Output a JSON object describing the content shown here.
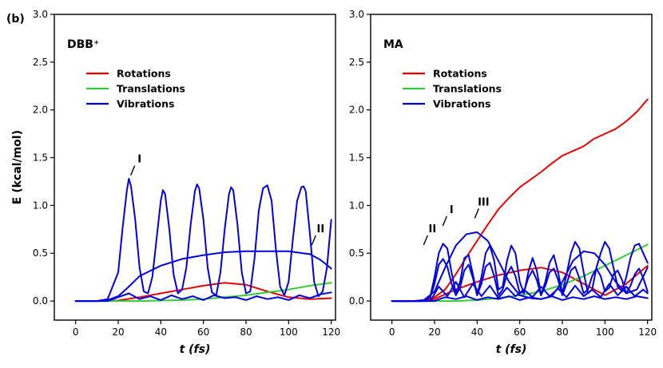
{
  "figure_label": "(b)",
  "colors": {
    "rotations": "#e60000",
    "translations": "#33cc33",
    "vibrations": "#0000dd"
  },
  "chart_data": [
    {
      "type": "line",
      "title": "DBB⁺",
      "xlabel": "t (fs)",
      "ylabel": "E (kcal/mol)",
      "xlim": [
        -10,
        122
      ],
      "ylim": [
        -0.2,
        3.0
      ],
      "xticks": [
        0,
        20,
        40,
        60,
        80,
        100,
        120
      ],
      "yticks": [
        0.0,
        0.5,
        1.0,
        1.5,
        2.0,
        2.5,
        3.0
      ],
      "ytick_labels": [
        "0.0",
        "0.5",
        "1.0",
        "1.5",
        "2.0",
        "2.5",
        "3.0"
      ],
      "legend": {
        "position": "upper-left",
        "entries": [
          "Rotations",
          "Translations",
          "Vibrations"
        ]
      },
      "annotations": [
        {
          "text": "I",
          "x": 30,
          "y": 1.45
        },
        {
          "text": "II",
          "x": 115,
          "y": 0.72
        }
      ],
      "series": [
        {
          "name": "Rotations",
          "group": "rotations",
          "x": [
            0,
            10,
            20,
            30,
            40,
            50,
            60,
            70,
            80,
            90,
            100,
            110,
            120
          ],
          "values": [
            0,
            0,
            0.005,
            0.04,
            0.08,
            0.12,
            0.16,
            0.19,
            0.17,
            0.1,
            0.04,
            0.02,
            0.03
          ]
        },
        {
          "name": "Translations",
          "group": "translations",
          "x": [
            0,
            10,
            20,
            30,
            40,
            50,
            60,
            70,
            80,
            90,
            100,
            110,
            120
          ],
          "values": [
            0,
            0,
            0,
            0,
            0.005,
            0.01,
            0.02,
            0.04,
            0.06,
            0.09,
            0.12,
            0.16,
            0.19
          ]
        },
        {
          "name": "Vibrations",
          "group": "vibrations",
          "x": [
            0,
            10,
            15,
            20,
            22,
            24,
            25,
            26,
            28,
            30,
            32,
            34,
            36,
            38,
            40,
            41,
            42,
            44,
            46,
            48,
            50,
            52,
            54,
            56,
            57,
            58,
            60,
            62,
            64,
            66,
            68,
            70,
            72,
            73,
            74,
            76,
            78,
            80,
            82,
            84,
            86,
            88,
            90,
            92,
            94,
            96,
            98,
            100,
            102,
            104,
            106,
            107,
            108,
            110,
            112,
            114,
            116,
            118,
            120
          ],
          "values": [
            0,
            0,
            0.02,
            0.3,
            0.75,
            1.15,
            1.28,
            1.2,
            0.85,
            0.35,
            0.1,
            0.08,
            0.25,
            0.65,
            1.05,
            1.16,
            1.12,
            0.75,
            0.28,
            0.08,
            0.12,
            0.35,
            0.8,
            1.15,
            1.22,
            1.18,
            0.85,
            0.35,
            0.09,
            0.06,
            0.3,
            0.75,
            1.12,
            1.19,
            1.16,
            0.8,
            0.3,
            0.08,
            0.1,
            0.45,
            0.95,
            1.18,
            1.21,
            1.05,
            0.55,
            0.15,
            0.06,
            0.2,
            0.65,
            1.05,
            1.19,
            1.2,
            1.15,
            0.7,
            0.2,
            0.05,
            0.1,
            0.35,
            0.85
          ]
        },
        {
          "name": "Vibrations (II)",
          "group": "vibrations",
          "x": [
            0,
            10,
            15,
            20,
            25,
            30,
            40,
            50,
            60,
            70,
            80,
            90,
            100,
            110,
            115,
            120
          ],
          "values": [
            0,
            0,
            0.01,
            0.05,
            0.15,
            0.26,
            0.37,
            0.44,
            0.48,
            0.51,
            0.52,
            0.52,
            0.52,
            0.49,
            0.43,
            0.34
          ]
        },
        {
          "name": "Vibrations (low)",
          "group": "vibrations",
          "x": [
            0,
            15,
            20,
            25,
            30,
            35,
            40,
            45,
            50,
            55,
            60,
            65,
            70,
            75,
            80,
            85,
            90,
            95,
            100,
            105,
            110,
            115,
            120
          ],
          "values": [
            0,
            0,
            0.04,
            0.08,
            0.02,
            0.05,
            0.01,
            0.06,
            0.02,
            0.05,
            0.01,
            0.06,
            0.03,
            0.04,
            0.01,
            0.05,
            0.02,
            0.04,
            0.01,
            0.06,
            0.03,
            0.07,
            0.09
          ]
        }
      ]
    },
    {
      "type": "line",
      "title": "MA",
      "xlabel": "t (fs)",
      "ylabel": "",
      "xlim": [
        -10,
        122
      ],
      "ylim": [
        -0.2,
        3.0
      ],
      "xticks": [
        0,
        20,
        40,
        60,
        80,
        100,
        120
      ],
      "yticks": [
        0.0,
        0.5,
        1.0,
        1.5,
        2.0,
        2.5,
        3.0
      ],
      "ytick_labels": [
        "0.0",
        "0.5",
        "1.0",
        "1.5",
        "2.0",
        "2.5",
        "3.0"
      ],
      "legend": {
        "position": "upper-left",
        "entries": [
          "Rotations",
          "Translations",
          "Vibrations"
        ]
      },
      "annotations": [
        {
          "text": "II",
          "x": 19,
          "y": 0.72
        },
        {
          "text": "I",
          "x": 28,
          "y": 0.92
        },
        {
          "text": "III",
          "x": 43,
          "y": 1.0
        }
      ],
      "series": [
        {
          "name": "Rotations",
          "group": "rotations",
          "x": [
            0,
            10,
            15,
            20,
            25,
            30,
            35,
            40,
            45,
            50,
            55,
            60,
            65,
            70,
            75,
            80,
            85,
            90,
            95,
            100,
            105,
            110,
            115,
            120
          ],
          "values": [
            0,
            0,
            0.005,
            0.04,
            0.12,
            0.28,
            0.46,
            0.63,
            0.8,
            0.96,
            1.08,
            1.19,
            1.27,
            1.35,
            1.44,
            1.52,
            1.57,
            1.62,
            1.7,
            1.75,
            1.8,
            1.88,
            1.98,
            2.11
          ]
        },
        {
          "name": "Rotations (2)",
          "group": "rotations",
          "x": [
            0,
            15,
            20,
            30,
            40,
            50,
            60,
            70,
            80,
            90,
            100,
            110,
            120
          ],
          "values": [
            0,
            0,
            0.02,
            0.12,
            0.2,
            0.27,
            0.32,
            0.35,
            0.3,
            0.18,
            0.06,
            0.18,
            0.37
          ]
        },
        {
          "name": "Translations",
          "group": "translations",
          "x": [
            0,
            10,
            20,
            30,
            40,
            50,
            60,
            70,
            80,
            90,
            100,
            110,
            120
          ],
          "values": [
            0,
            0,
            0,
            0,
            0.01,
            0.03,
            0.06,
            0.1,
            0.17,
            0.26,
            0.37,
            0.48,
            0.59
          ]
        },
        {
          "name": "Vibrations (III)",
          "group": "vibrations",
          "x": [
            0,
            10,
            15,
            20,
            25,
            30,
            35,
            40,
            45,
            50,
            55,
            60,
            65,
            70,
            75,
            80,
            85,
            90,
            95,
            100,
            105,
            110,
            115,
            120
          ],
          "values": [
            0,
            0,
            0.01,
            0.1,
            0.35,
            0.58,
            0.7,
            0.72,
            0.63,
            0.42,
            0.2,
            0.06,
            0.03,
            0.02,
            0.05,
            0.2,
            0.42,
            0.52,
            0.5,
            0.38,
            0.2,
            0.08,
            0.12,
            0.35
          ]
        },
        {
          "name": "Vibrations (I)",
          "group": "vibrations",
          "x": [
            0,
            15,
            18,
            20,
            22,
            24,
            26,
            28,
            30,
            32,
            34,
            36,
            38,
            40,
            42,
            44,
            46,
            48,
            50,
            52,
            54,
            56,
            58,
            60,
            62,
            64,
            66,
            68,
            70,
            72,
            74,
            76,
            78,
            80,
            82,
            84,
            86,
            88,
            90,
            92,
            94,
            96,
            98,
            100,
            102,
            104,
            106,
            108,
            110,
            112,
            114,
            116,
            118,
            120
          ],
          "values": [
            0,
            0,
            0.05,
            0.25,
            0.5,
            0.6,
            0.55,
            0.3,
            0.08,
            0.2,
            0.45,
            0.48,
            0.28,
            0.06,
            0.25,
            0.5,
            0.58,
            0.42,
            0.12,
            0.15,
            0.42,
            0.58,
            0.5,
            0.2,
            0.08,
            0.3,
            0.45,
            0.32,
            0.06,
            0.2,
            0.4,
            0.48,
            0.3,
            0.08,
            0.28,
            0.5,
            0.62,
            0.55,
            0.3,
            0.08,
            0.12,
            0.35,
            0.5,
            0.62,
            0.55,
            0.35,
            0.15,
            0.1,
            0.25,
            0.45,
            0.58,
            0.6,
            0.5,
            0.4
          ]
        },
        {
          "name": "Vibrations (II)",
          "group": "vibrations",
          "x": [
            0,
            15,
            18,
            20,
            22,
            24,
            26,
            28,
            30,
            32,
            34,
            36,
            38,
            40,
            42,
            44,
            46,
            48,
            50,
            52,
            54,
            56,
            58,
            60,
            62,
            64,
            66,
            68,
            70,
            72,
            74,
            76,
            78,
            80,
            82,
            84,
            86,
            88,
            90,
            92,
            94,
            96,
            98,
            100,
            102,
            104,
            106,
            108,
            110,
            112,
            114,
            116,
            118,
            120
          ],
          "values": [
            0,
            0,
            0.04,
            0.18,
            0.38,
            0.44,
            0.36,
            0.18,
            0.06,
            0.14,
            0.32,
            0.38,
            0.24,
            0.06,
            0.18,
            0.36,
            0.4,
            0.26,
            0.06,
            0.12,
            0.28,
            0.36,
            0.26,
            0.08,
            0.1,
            0.24,
            0.32,
            0.22,
            0.06,
            0.16,
            0.3,
            0.34,
            0.22,
            0.06,
            0.18,
            0.32,
            0.36,
            0.24,
            0.08,
            0.12,
            0.26,
            0.34,
            0.26,
            0.1,
            0.14,
            0.28,
            0.32,
            0.22,
            0.08,
            0.16,
            0.28,
            0.34,
            0.24,
            0.1
          ]
        },
        {
          "name": "Vibrations (low)",
          "group": "vibrations",
          "x": [
            0,
            18,
            22,
            26,
            30,
            34,
            38,
            42,
            46,
            50,
            54,
            58,
            62,
            66,
            70,
            74,
            78,
            82,
            86,
            90,
            94,
            98,
            102,
            106,
            110,
            114,
            118,
            120
          ],
          "values": [
            0,
            0,
            0.15,
            0.05,
            0.2,
            0.04,
            0.18,
            0.05,
            0.16,
            0.03,
            0.14,
            0.05,
            0.12,
            0.04,
            0.15,
            0.05,
            0.13,
            0.04,
            0.16,
            0.05,
            0.12,
            0.04,
            0.18,
            0.06,
            0.15,
            0.05,
            0.12,
            0.08
          ]
        },
        {
          "name": "Vibrations (tiny)",
          "group": "vibrations",
          "x": [
            0,
            20,
            25,
            30,
            35,
            40,
            45,
            50,
            55,
            60,
            65,
            70,
            75,
            80,
            85,
            90,
            95,
            100,
            105,
            110,
            115,
            120
          ],
          "values": [
            0,
            0,
            0.04,
            0.02,
            0.05,
            0.01,
            0.04,
            0.02,
            0.05,
            0.01,
            0.04,
            0.02,
            0.05,
            0.01,
            0.04,
            0.02,
            0.05,
            0.02,
            0.04,
            0.02,
            0.05,
            0.03
          ]
        }
      ]
    }
  ]
}
